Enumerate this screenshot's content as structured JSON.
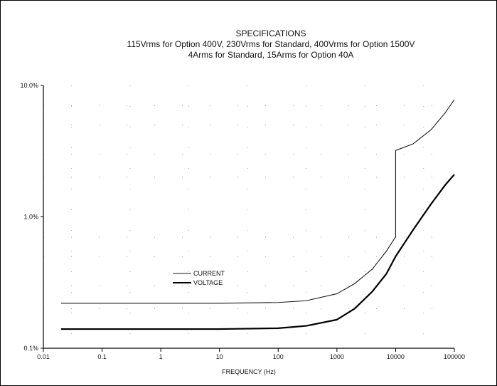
{
  "chart_data": {
    "type": "line",
    "title": "SPECIFICATIONS",
    "subtitle_lines": [
      "115Vrms for Option 400V, 230Vrms for Standard, 400Vrms for Option 1500V",
      "4Arms for Standard, 15Arms for Option 40A"
    ],
    "xlabel": "FREQUENCY (Hz)",
    "ylabel": "",
    "x_scale": "log",
    "y_scale": "log",
    "xlim": [
      0.01,
      100000
    ],
    "ylim": [
      0.1,
      10.0
    ],
    "x_ticks": [
      0.01,
      0.1,
      1,
      10,
      100,
      1000,
      10000,
      100000
    ],
    "x_tick_labels": [
      "0.01",
      "0.1",
      "1",
      "10",
      "100",
      "1000",
      "10000",
      "100000"
    ],
    "y_ticks": [
      0.1,
      1.0,
      10.0
    ],
    "y_tick_labels": [
      "0.1%",
      "1.0%",
      "10.0%"
    ],
    "grid": "dotted",
    "legend_position": "lower-left",
    "series": [
      {
        "name": "CURRENT",
        "color": "#1a1a1a",
        "x": [
          0.02,
          1,
          10,
          100,
          300,
          1000,
          2000,
          4000,
          7000,
          9900,
          10000,
          10001,
          20000,
          40000,
          70000,
          100000
        ],
        "y": [
          0.22,
          0.22,
          0.22,
          0.223,
          0.23,
          0.26,
          0.31,
          0.4,
          0.55,
          0.7,
          0.7,
          3.2,
          3.6,
          4.6,
          6.2,
          7.8
        ]
      },
      {
        "name": "VOLTAGE",
        "color": "#000000",
        "x": [
          0.02,
          1,
          10,
          100,
          300,
          1000,
          2000,
          4000,
          7000,
          10000,
          20000,
          40000,
          70000,
          100000
        ],
        "y": [
          0.14,
          0.14,
          0.14,
          0.142,
          0.148,
          0.165,
          0.2,
          0.27,
          0.37,
          0.5,
          0.8,
          1.25,
          1.75,
          2.1
        ]
      }
    ]
  }
}
